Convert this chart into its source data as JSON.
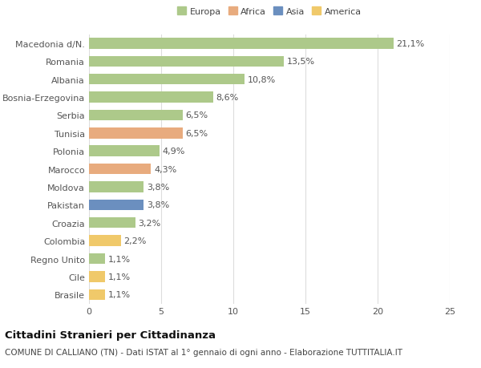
{
  "categories": [
    "Macedonia d/N.",
    "Romania",
    "Albania",
    "Bosnia-Erzegovina",
    "Serbia",
    "Tunisia",
    "Polonia",
    "Marocco",
    "Moldova",
    "Pakistan",
    "Croazia",
    "Colombia",
    "Regno Unito",
    "Cile",
    "Brasile"
  ],
  "values": [
    21.1,
    13.5,
    10.8,
    8.6,
    6.5,
    6.5,
    4.9,
    4.3,
    3.8,
    3.8,
    3.2,
    2.2,
    1.1,
    1.1,
    1.1
  ],
  "labels": [
    "21,1%",
    "13,5%",
    "10,8%",
    "8,6%",
    "6,5%",
    "6,5%",
    "4,9%",
    "4,3%",
    "3,8%",
    "3,8%",
    "3,2%",
    "2,2%",
    "1,1%",
    "1,1%",
    "1,1%"
  ],
  "colors": [
    "#adc98a",
    "#adc98a",
    "#adc98a",
    "#adc98a",
    "#adc98a",
    "#e8ab7e",
    "#adc98a",
    "#e8ab7e",
    "#adc98a",
    "#6b8fbf",
    "#adc98a",
    "#f0c96a",
    "#adc98a",
    "#f0c96a",
    "#f0c96a"
  ],
  "legend_labels": [
    "Europa",
    "Africa",
    "Asia",
    "America"
  ],
  "legend_colors": [
    "#adc98a",
    "#e8ab7e",
    "#6b8fbf",
    "#f0c96a"
  ],
  "title": "Cittadini Stranieri per Cittadinanza",
  "subtitle": "COMUNE DI CALLIANO (TN) - Dati ISTAT al 1° gennaio di ogni anno - Elaborazione TUTTITALIA.IT",
  "xlim": [
    0,
    25
  ],
  "xticks": [
    0,
    5,
    10,
    15,
    20,
    25
  ],
  "bg_color": "#ffffff",
  "bar_height": 0.6,
  "label_fontsize": 8,
  "tick_fontsize": 8,
  "title_fontsize": 9.5,
  "subtitle_fontsize": 7.5
}
